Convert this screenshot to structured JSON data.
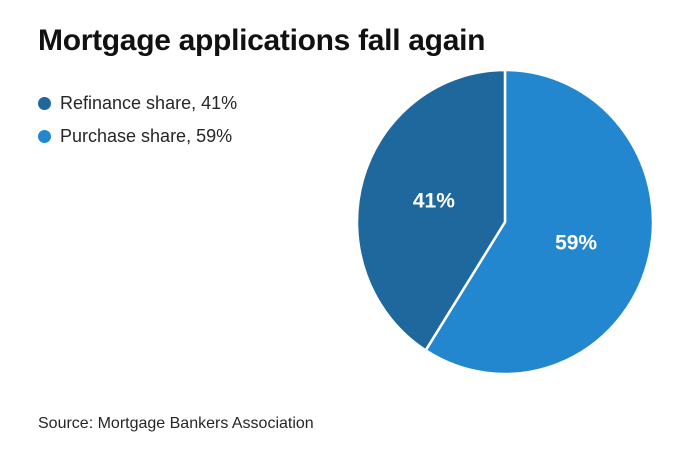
{
  "page": {
    "background": "#ffffff"
  },
  "header": {
    "title": "Mortgage applications fall again"
  },
  "legend": {
    "items": [
      {
        "label": "Refinance share, 41%",
        "color": "#1e689e"
      },
      {
        "label": "Purchase share, 59%",
        "color": "#2287ce"
      }
    ]
  },
  "footer": {
    "source": "Source: Mortgage Bankers Association"
  },
  "chart_data": {
    "type": "pie",
    "title": "Mortgage applications fall again",
    "categories": [
      "Refinance share",
      "Purchase share"
    ],
    "values": [
      41,
      59
    ],
    "slices_draw_order": [
      {
        "name": "Purchase share",
        "value": 59,
        "label": "59%",
        "color": "#2287ce"
      },
      {
        "name": "Refinance share",
        "value": 41,
        "label": "41%",
        "color": "#1e689e"
      }
    ],
    "start_angle_deg": 0,
    "direction": "clockwise",
    "slice_label_color": "#ffffff",
    "slice_divider_color": "#ffffff",
    "legend_position": "top-left",
    "source": "Source: Mortgage Bankers Association"
  }
}
